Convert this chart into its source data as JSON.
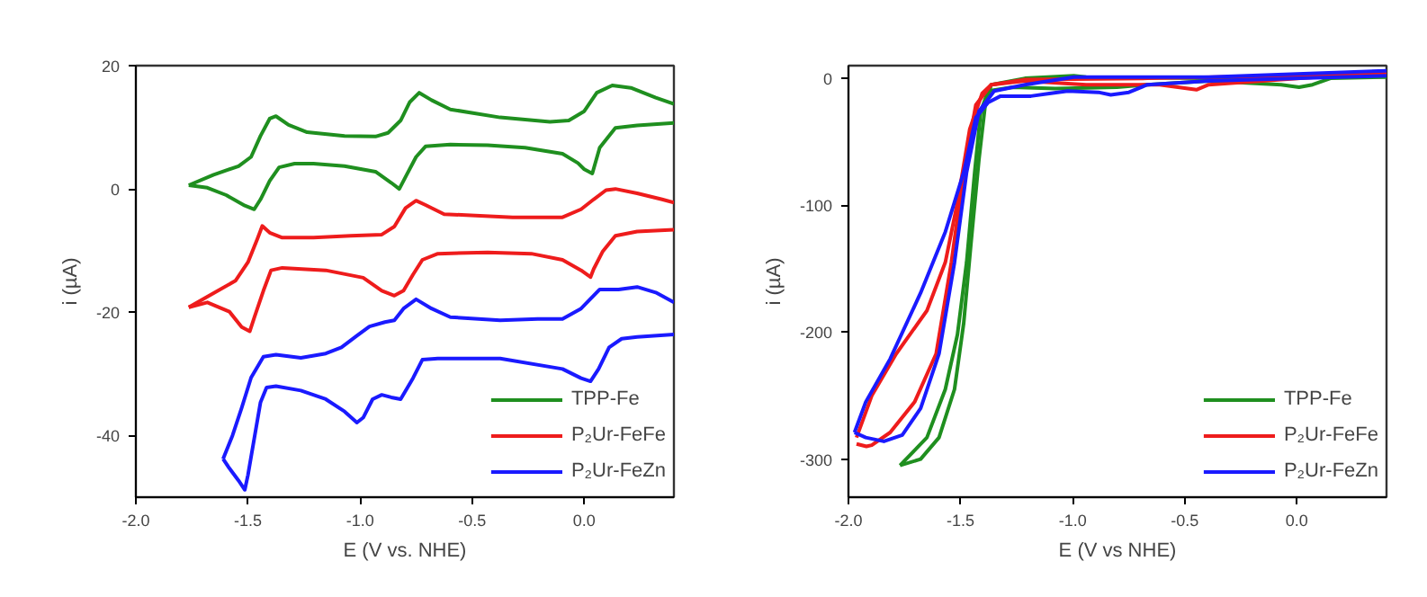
{
  "chart_data": [
    {
      "type": "line",
      "xlabel": "E (V vs. NHE)",
      "ylabel": "i (µA)",
      "xlim": [
        -2.0,
        0.4
      ],
      "ylim": [
        -50,
        20
      ],
      "xticks": [
        {
          "value": -2.0,
          "label": "-2.0"
        },
        {
          "value": -1.5,
          "label": "-1.5"
        },
        {
          "value": -1.0,
          "label": "-1.0"
        },
        {
          "value": -0.5,
          "label": "-0.5"
        },
        {
          "value": 0.0,
          "label": "0.0"
        }
      ],
      "yticks": [
        -40,
        -20,
        0,
        20
      ],
      "grid": false,
      "legend": "bottom right",
      "line_style": "solid",
      "marker": "none",
      "series": [
        {
          "name": "TPP-Fe",
          "color": "#1f8f1f",
          "x": [
            -1.764,
            -1.653,
            -1.542,
            -1.486,
            -1.444,
            -1.403,
            -1.375,
            -1.319,
            -1.236,
            -1.069,
            -0.931,
            -0.875,
            -0.819,
            -0.778,
            -0.736,
            -0.681,
            -0.597,
            -0.375,
            -0.153,
            -0.069,
            0.0,
            0.056,
            0.125,
            0.208,
            0.319,
            0.4
          ],
          "values": [
            0.6,
            2.3,
            3.7,
            5.2,
            8.6,
            11.4,
            11.8,
            10.4,
            9.2,
            8.6,
            8.5,
            9.1,
            11.1,
            14.1,
            15.6,
            14.4,
            12.9,
            11.6,
            10.9,
            11.1,
            12.6,
            15.6,
            16.8,
            16.4,
            14.8,
            13.8
          ]
        },
        {
          "color": "#1f8f1f",
          "x": [
            0.4,
            0.236,
            0.139,
            0.069,
            0.036,
            0.0,
            -0.028,
            -0.097,
            -0.264,
            -0.431,
            -0.597,
            -0.708,
            -0.75,
            -0.792,
            -0.825,
            -0.861,
            -0.931,
            -1.069,
            -1.208,
            -1.292,
            -1.361,
            -1.403,
            -1.444,
            -1.472,
            -1.514,
            -1.597,
            -1.681,
            -1.764
          ],
          "values": [
            10.7,
            10.3,
            9.9,
            6.7,
            2.5,
            3.2,
            4.2,
            5.7,
            6.7,
            7.1,
            7.2,
            6.9,
            5.2,
            2.3,
            0.0,
            1.0,
            2.8,
            3.7,
            4.1,
            4.1,
            3.5,
            1.3,
            -1.7,
            -3.3,
            -2.7,
            -1.0,
            0.2,
            0.6
          ]
        },
        {
          "name": "P₂Ur-FeFe",
          "color": "#ee1c1c",
          "x": [
            -1.764,
            -1.653,
            -1.556,
            -1.5,
            -1.458,
            -1.436,
            -1.403,
            -1.347,
            -1.208,
            -1.042,
            -0.903,
            -0.847,
            -0.797,
            -0.75,
            -0.708,
            -0.625,
            -0.486,
            -0.319,
            -0.097,
            -0.014,
            0.042,
            0.097,
            0.139,
            0.236,
            0.347,
            0.4
          ],
          "values": [
            -19.2,
            -16.9,
            -14.9,
            -11.9,
            -8.1,
            -6.0,
            -7.1,
            -7.9,
            -7.9,
            -7.6,
            -7.4,
            -6.1,
            -3.1,
            -1.9,
            -2.6,
            -4.1,
            -4.3,
            -4.6,
            -4.6,
            -3.3,
            -1.7,
            -0.2,
            0.0,
            -0.7,
            -1.7,
            -2.2
          ]
        },
        {
          "color": "#ee1c1c",
          "x": [
            0.4,
            0.236,
            0.139,
            0.083,
            0.042,
            0.028,
            -0.014,
            -0.097,
            -0.236,
            -0.431,
            -0.653,
            -0.722,
            -0.764,
            -0.806,
            -0.847,
            -0.903,
            -0.986,
            -1.153,
            -1.347,
            -1.397,
            -1.431,
            -1.472,
            -1.492,
            -1.528,
            -1.583,
            -1.681,
            -1.764
          ],
          "values": [
            -6.6,
            -6.9,
            -7.6,
            -10.1,
            -13.0,
            -14.3,
            -13.2,
            -11.5,
            -10.5,
            -10.3,
            -10.5,
            -11.5,
            -13.9,
            -16.5,
            -17.3,
            -16.5,
            -14.4,
            -13.2,
            -12.8,
            -13.2,
            -16.5,
            -20.9,
            -23.1,
            -22.4,
            -19.9,
            -18.4,
            -19.2
          ]
        },
        {
          "name": "P₂Ur-FeZn",
          "color": "#1a1aff",
          "x": [
            -1.611,
            -1.569,
            -1.528,
            -1.486,
            -1.431,
            -1.375,
            -1.264,
            -1.153,
            -1.083,
            -1.014,
            -0.958,
            -0.889,
            -0.847,
            -0.806,
            -0.75,
            -0.681,
            -0.597,
            -0.375,
            -0.208,
            -0.097,
            -0.014,
            0.069,
            0.153,
            0.236,
            0.319,
            0.4
          ],
          "values": [
            -43.8,
            -40.0,
            -35.5,
            -30.6,
            -27.2,
            -26.9,
            -27.4,
            -26.7,
            -25.7,
            -23.8,
            -22.3,
            -21.6,
            -21.3,
            -19.4,
            -17.9,
            -19.4,
            -20.8,
            -21.3,
            -21.1,
            -21.1,
            -19.4,
            -16.3,
            -16.3,
            -15.9,
            -16.8,
            -18.4
          ]
        },
        {
          "color": "#1a1aff",
          "x": [
            0.4,
            0.236,
            0.167,
            0.111,
            0.064,
            0.028,
            -0.014,
            -0.097,
            -0.375,
            -0.653,
            -0.722,
            -0.764,
            -0.819,
            -0.861,
            -0.903,
            -0.944,
            -0.986,
            -1.014,
            -1.069,
            -1.153,
            -1.264,
            -1.375,
            -1.417,
            -1.444,
            -1.472,
            -1.5,
            -1.514,
            -1.542,
            -1.583,
            -1.611
          ],
          "values": [
            -23.6,
            -24.0,
            -24.3,
            -25.7,
            -29.2,
            -31.2,
            -30.7,
            -29.2,
            -27.5,
            -27.5,
            -27.7,
            -30.7,
            -34.1,
            -33.8,
            -33.4,
            -34.1,
            -37.1,
            -37.9,
            -36.1,
            -34.1,
            -32.7,
            -32.0,
            -32.2,
            -34.6,
            -40.5,
            -46.4,
            -48.8,
            -47.3,
            -45.3,
            -43.8
          ]
        }
      ]
    },
    {
      "type": "line",
      "xlabel": "E (V vs NHE)",
      "ylabel": "i (µA)",
      "xlim": [
        -2.0,
        0.4
      ],
      "ylim": [
        -330,
        10
      ],
      "xticks": [
        {
          "value": -2.0,
          "label": "-2.0"
        },
        {
          "value": -1.5,
          "label": "-1.5"
        },
        {
          "value": -1.0,
          "label": "-1.0"
        },
        {
          "value": -0.5,
          "label": "-0.5"
        },
        {
          "value": 0.0,
          "label": "0.0"
        }
      ],
      "yticks": [
        -300,
        -200,
        -100,
        0
      ],
      "grid": false,
      "legend": "bottom right",
      "line_style": "solid",
      "marker": "none",
      "series": [
        {
          "name": "TPP-Fe",
          "color": "#1f8f1f",
          "x": [
            -1.77,
            -1.65,
            -1.568,
            -1.514,
            -1.473,
            -1.437,
            -1.41,
            -1.377,
            -1.268,
            -1.077,
            -0.803,
            -0.667,
            -0.393,
            -0.07,
            0.01,
            0.07,
            0.15,
            0.4
          ],
          "values": [
            -305,
            -283,
            -245,
            -202,
            -145,
            -74,
            -26,
            -10,
            -7,
            -8,
            -7,
            -5,
            -2,
            -5,
            -7,
            -5,
            0,
            1
          ]
        },
        {
          "color": "#1f8f1f",
          "x": [
            0.4,
            -0.393,
            -0.94,
            -0.995,
            -1.213,
            -1.363,
            -1.39,
            -1.418,
            -1.454,
            -1.486,
            -1.527,
            -1.596,
            -1.678,
            -1.77
          ],
          "values": [
            2,
            0,
            1,
            2,
            0,
            -5,
            -21,
            -64,
            -131,
            -193,
            -245,
            -283,
            -300,
            -305
          ]
        },
        {
          "name": "P₂Ur-FeFe",
          "color": "#ee1c1c",
          "x": [
            -1.964,
            -1.92,
            -1.896,
            -1.814,
            -1.705,
            -1.609,
            -1.541,
            -1.486,
            -1.432,
            -1.363,
            -1.213,
            -0.94,
            -0.612,
            -0.448,
            -0.393,
            0.4
          ],
          "values": [
            -288,
            -290,
            -289,
            -279,
            -255,
            -217,
            -145,
            -74,
            -21,
            -5,
            -2,
            -5,
            -5,
            -9,
            -5,
            5
          ]
        },
        {
          "color": "#ee1c1c",
          "x": [
            0.4,
            -0.667,
            -1.213,
            -1.363,
            -1.404,
            -1.459,
            -1.514,
            -1.568,
            -1.65,
            -1.787,
            -1.896,
            -1.964
          ],
          "values": [
            3,
            0,
            -1,
            -5,
            -12,
            -40,
            -98,
            -145,
            -183,
            -217,
            -250,
            -283
          ]
        },
        {
          "name": "P₂Ur-FeZn",
          "color": "#1a1aff",
          "x": [
            -1.973,
            -1.923,
            -1.814,
            -1.678,
            -1.568,
            -1.486,
            -1.432,
            -1.377,
            -1.322,
            -1.186,
            -1.104,
            -1.022,
            -0.885,
            -0.83,
            -0.749,
            -0.667,
            -0.393,
            0.01,
            0.4
          ],
          "values": [
            -279,
            -255,
            -221,
            -169,
            -121,
            -74,
            -31,
            -19,
            -14,
            -14,
            -12,
            -10,
            -11,
            -13,
            -11,
            -5,
            -2,
            0,
            2
          ]
        },
        {
          "color": "#1a1aff",
          "x": [
            0.4,
            -0.393,
            -0.995,
            -1.213,
            -1.35,
            -1.418,
            -1.473,
            -1.527,
            -1.596,
            -1.678,
            -1.76,
            -1.842,
            -1.923,
            -1.973
          ],
          "values": [
            6,
            1,
            1,
            -5,
            -10,
            -26,
            -74,
            -145,
            -217,
            -260,
            -281,
            -286,
            -283,
            -279
          ]
        }
      ]
    }
  ]
}
